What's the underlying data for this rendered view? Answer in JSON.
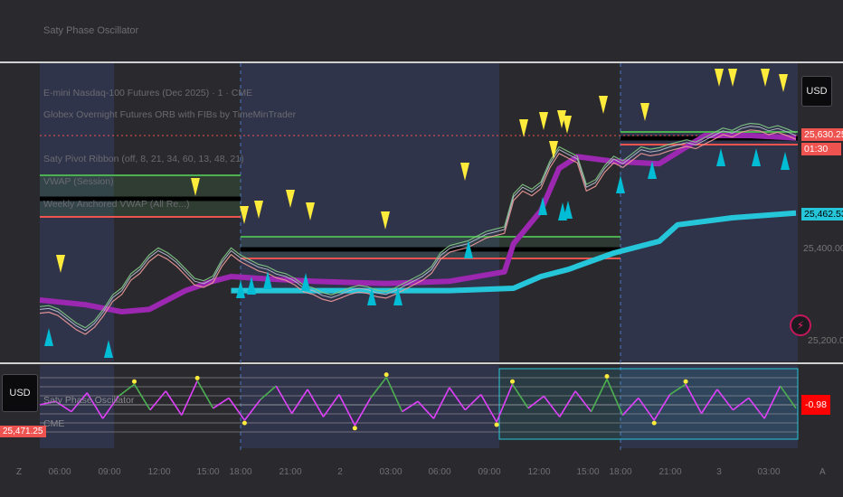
{
  "window": {
    "title": "Saty Phase Oscillator"
  },
  "overlays": {
    "symbol": "E-mini Nasdaq-100 Futures (Dec 2025) · 1 · CME",
    "globex": "Globex Overnight Futures ORB with FIBs by TimeMinTrader",
    "ribbon": "Saty Pivot Ribbon (off, 8, 21, 34, 60, 13, 48, 21)",
    "vwap": "VWAP (Session)",
    "weekly_vwap": "Weekly Anchored VWAP (All Re...)"
  },
  "currency": {
    "main": "USD",
    "oscillator": "USD"
  },
  "price_scale": {
    "current_price": "25,630.25",
    "countdown": "01:30",
    "vwap_price": "25,462.53",
    "level_1": "25,400.00",
    "level_2": "25,200.00"
  },
  "oscillator": {
    "label": "Saty Phase Oscillator",
    "sub_label": "CME",
    "value": "-0.98",
    "left_value": "25,471.25"
  },
  "time_axis": {
    "left_glyph": "Z",
    "right_glyph": "A",
    "ticks": [
      "06:00",
      "09:00",
      "12:00",
      "15:00",
      "18:00",
      "21:00",
      "2",
      "03:00",
      "06:00",
      "09:00",
      "12:00",
      "15:00",
      "18:00",
      "21:00",
      "3",
      "03:00"
    ]
  },
  "colors": {
    "background": "#2a2a2e",
    "session_shade": "#30344a",
    "vwap_magenta": "#9c27b0",
    "weekly_vwap_cyan": "#26c6da",
    "price_red": "#ef5350",
    "oscillator_green": "#4caf50",
    "oscillator_magenta": "#e040fb",
    "marker_yellow": "#ffeb3b",
    "marker_cyan": "#00bcd4"
  },
  "chart_data": {
    "type": "line",
    "price": [
      [
        0,
        25260
      ],
      [
        1,
        25262
      ],
      [
        2,
        25255
      ],
      [
        3,
        25240
      ],
      [
        4,
        25225
      ],
      [
        5,
        25215
      ],
      [
        6,
        25230
      ],
      [
        7,
        25255
      ],
      [
        8,
        25285
      ],
      [
        9,
        25300
      ],
      [
        10,
        25330
      ],
      [
        11,
        25345
      ],
      [
        12,
        25370
      ],
      [
        13,
        25385
      ],
      [
        14,
        25375
      ],
      [
        15,
        25360
      ],
      [
        16,
        25340
      ],
      [
        17,
        25320
      ],
      [
        18,
        25315
      ],
      [
        19,
        25325
      ],
      [
        20,
        25360
      ],
      [
        21,
        25385
      ],
      [
        22,
        25370
      ],
      [
        23,
        25360
      ],
      [
        24,
        25350
      ],
      [
        25,
        25345
      ],
      [
        26,
        25335
      ],
      [
        27,
        25330
      ],
      [
        28,
        25320
      ],
      [
        29,
        25305
      ],
      [
        30,
        25300
      ],
      [
        31,
        25290
      ],
      [
        32,
        25285
      ],
      [
        33,
        25292
      ],
      [
        34,
        25300
      ],
      [
        35,
        25305
      ],
      [
        36,
        25302
      ],
      [
        37,
        25295
      ],
      [
        38,
        25292
      ],
      [
        39,
        25300
      ],
      [
        40,
        25310
      ],
      [
        41,
        25320
      ],
      [
        42,
        25330
      ],
      [
        43,
        25345
      ],
      [
        44,
        25375
      ],
      [
        45,
        25390
      ],
      [
        46,
        25395
      ],
      [
        47,
        25400
      ],
      [
        48,
        25410
      ],
      [
        49,
        25420
      ],
      [
        50,
        25425
      ],
      [
        51,
        25430
      ],
      [
        52,
        25500
      ],
      [
        53,
        25520
      ],
      [
        54,
        25510
      ],
      [
        55,
        25525
      ],
      [
        56,
        25570
      ],
      [
        57,
        25600
      ],
      [
        58,
        25590
      ],
      [
        59,
        25580
      ],
      [
        60,
        25520
      ],
      [
        61,
        25530
      ],
      [
        62,
        25560
      ],
      [
        63,
        25580
      ],
      [
        64,
        25570
      ],
      [
        65,
        25585
      ],
      [
        66,
        25600
      ],
      [
        67,
        25595
      ],
      [
        68,
        25598
      ],
      [
        69,
        25605
      ],
      [
        70,
        25610
      ],
      [
        71,
        25615
      ],
      [
        72,
        25610
      ],
      [
        73,
        25620
      ],
      [
        74,
        25630
      ],
      [
        75,
        25640
      ],
      [
        76,
        25635
      ],
      [
        77,
        25645
      ],
      [
        78,
        25650
      ],
      [
        79,
        25648
      ],
      [
        80,
        25640
      ],
      [
        81,
        25645
      ],
      [
        82,
        25638
      ],
      [
        83,
        25630
      ]
    ],
    "vwap_session": [
      [
        0,
        25280
      ],
      [
        5,
        25270
      ],
      [
        9,
        25255
      ],
      [
        12,
        25260
      ],
      [
        16,
        25300
      ],
      [
        19,
        25320
      ],
      [
        21,
        25330
      ],
      [
        25,
        25325
      ],
      [
        30,
        25320
      ],
      [
        38,
        25315
      ],
      [
        45,
        25320
      ],
      [
        51,
        25340
      ],
      [
        52,
        25400
      ],
      [
        55,
        25470
      ],
      [
        57,
        25560
      ],
      [
        59,
        25585
      ],
      [
        63,
        25575
      ],
      [
        68,
        25570
      ],
      [
        73,
        25630
      ],
      [
        78,
        25630
      ],
      [
        83,
        25625
      ]
    ],
    "weekly_vwap": [
      [
        21,
        25300
      ],
      [
        28,
        25300
      ],
      [
        45,
        25300
      ],
      [
        52,
        25305
      ],
      [
        55,
        25330
      ],
      [
        58,
        25345
      ],
      [
        63,
        25380
      ],
      [
        68,
        25405
      ],
      [
        70,
        25440
      ],
      [
        76,
        25455
      ],
      [
        83,
        25465
      ]
    ],
    "oscillator": [
      0,
      10,
      -20,
      35,
      -40,
      25,
      60,
      -15,
      40,
      -30,
      70,
      -10,
      20,
      -45,
      15,
      55,
      -25,
      45,
      -35,
      30,
      -60,
      20,
      80,
      -20,
      10,
      -40,
      50,
      -15,
      30,
      -50,
      60,
      -10,
      25,
      -35,
      40,
      -20,
      75,
      -30,
      20,
      -45,
      30,
      60,
      -25,
      45,
      -15,
      20,
      -40,
      55,
      -10
    ]
  }
}
